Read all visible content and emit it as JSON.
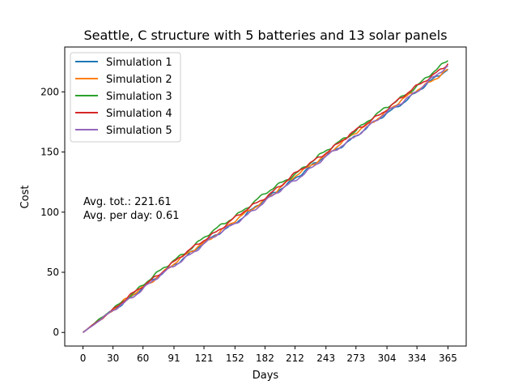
{
  "chart_data": {
    "type": "line",
    "title": "Seattle, C structure with 5 batteries and 13 solar panels",
    "xlabel": "Days",
    "ylabel": "Cost",
    "xlim": [
      -18.25,
      383.25
    ],
    "ylim": [
      -11.3,
      237.3
    ],
    "xticks": [
      0,
      30,
      60,
      91,
      121,
      152,
      182,
      212,
      243,
      273,
      304,
      334,
      365
    ],
    "yticks": [
      0,
      50,
      100,
      150,
      200
    ],
    "grid": false,
    "legend_position": "top-left",
    "annotations": [
      "Avg. tot.: 221.61",
      "Avg. per day: 0.61"
    ],
    "x": [
      0,
      30,
      60,
      91,
      121,
      152,
      182,
      212,
      243,
      273,
      304,
      334,
      365
    ],
    "series": [
      {
        "name": "Simulation 1",
        "color": "#1f77b4",
        "values": [
          0,
          18.5,
          37.0,
          56.5,
          74.0,
          91.5,
          110.0,
          128.5,
          146.5,
          163.5,
          182.0,
          200.0,
          219.0
        ]
      },
      {
        "name": "Simulation 2",
        "color": "#ff7f0e",
        "values": [
          0,
          19.0,
          37.5,
          57.0,
          75.0,
          92.5,
          110.5,
          129.5,
          148.0,
          166.0,
          184.0,
          201.5,
          218.5
        ]
      },
      {
        "name": "Simulation 3",
        "color": "#2ca02c",
        "values": [
          0,
          19.5,
          39.5,
          60.0,
          78.5,
          97.0,
          115.0,
          132.0,
          150.5,
          168.5,
          187.0,
          205.0,
          226.0
        ]
      },
      {
        "name": "Simulation 4",
        "color": "#d62728",
        "values": [
          0,
          19.0,
          38.5,
          58.5,
          77.0,
          95.0,
          112.5,
          131.5,
          150.0,
          167.5,
          186.0,
          204.5,
          223.5
        ]
      },
      {
        "name": "Simulation 5",
        "color": "#9467bd",
        "values": [
          0,
          18.0,
          36.5,
          55.5,
          73.5,
          91.0,
          108.5,
          127.0,
          145.5,
          164.0,
          182.5,
          201.0,
          221.0
        ]
      }
    ]
  }
}
